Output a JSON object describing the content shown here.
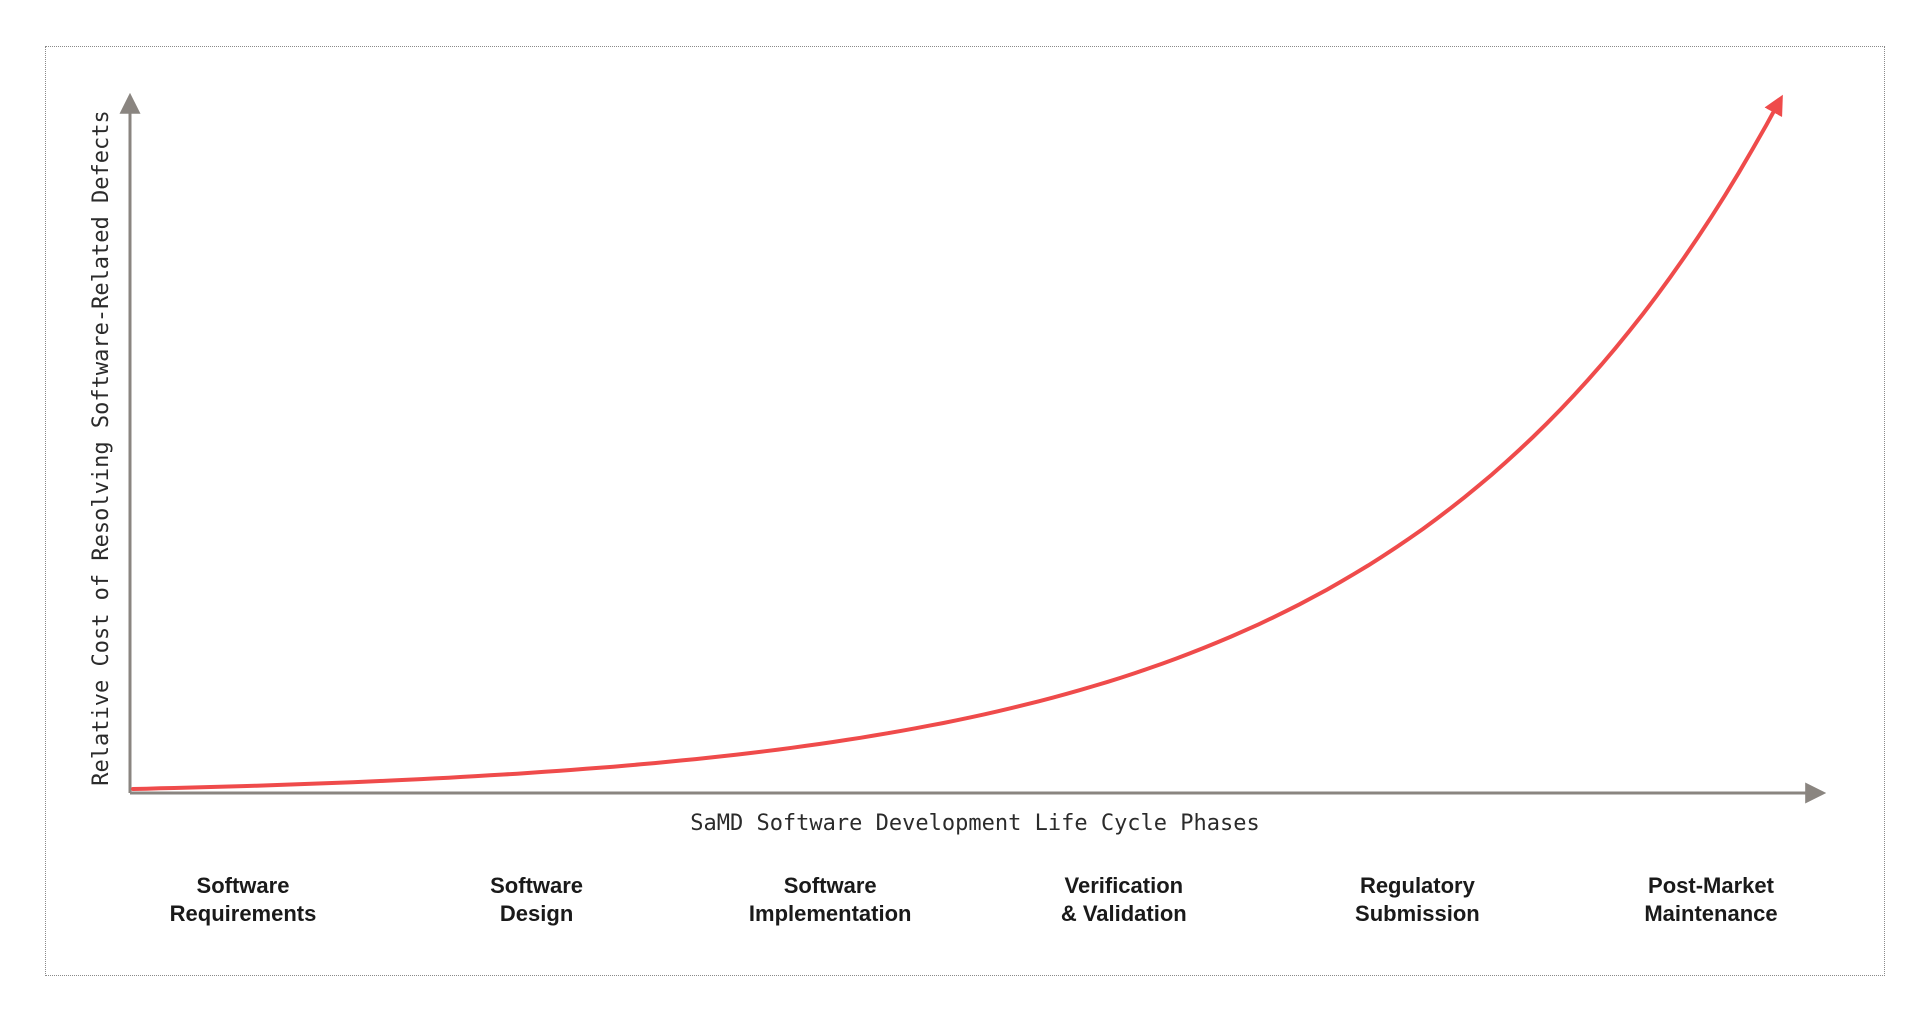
{
  "chart_data": {
    "type": "line",
    "title": "",
    "xlabel": "SaMD Software Development Life Cycle Phases",
    "ylabel": "Relative Cost of Resolving Software-Related Defects",
    "categories": [
      [
        "Software",
        "Requirements"
      ],
      [
        "Software",
        "Design"
      ],
      [
        "Software",
        "Implementation"
      ],
      [
        "Verification",
        "& Validation"
      ],
      [
        "Regulatory",
        "Submission"
      ],
      [
        "Post-Market",
        "Maintenance"
      ]
    ],
    "curve": "exponential",
    "grid": false,
    "legend": "none",
    "colors": {
      "axis": "#8a8580",
      "curve": "#ef4b4b",
      "text": "#1a1a1a"
    }
  }
}
